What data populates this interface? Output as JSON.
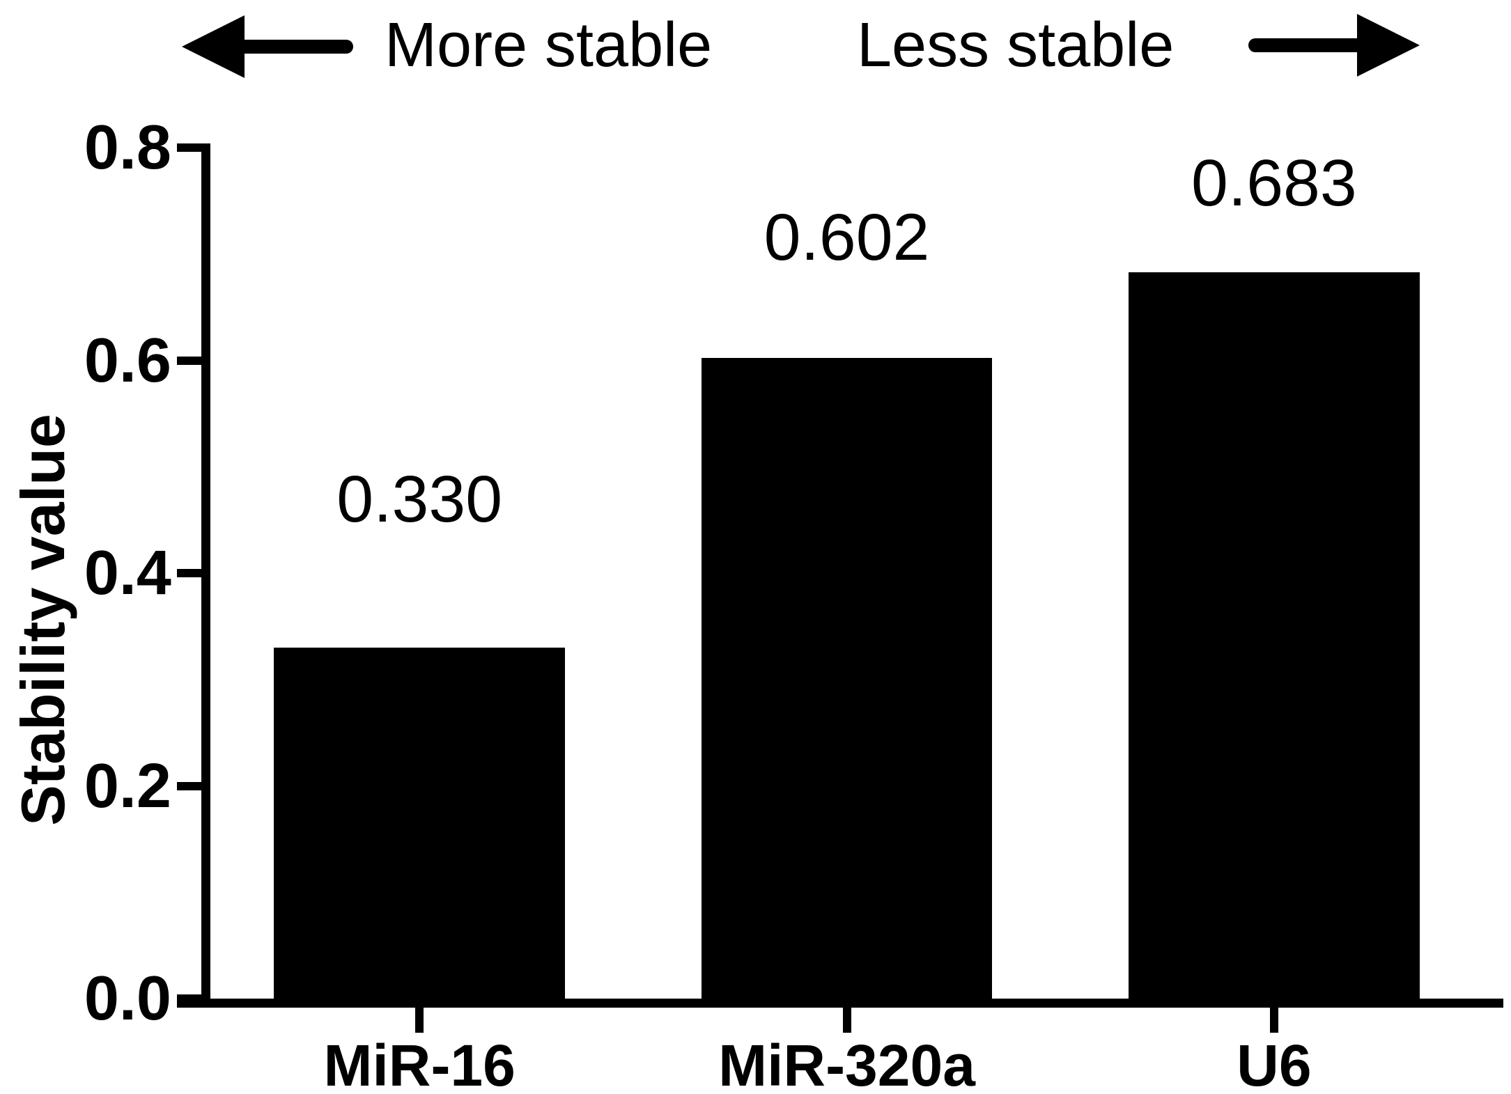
{
  "figure": {
    "background": "#ffffff",
    "foreground": "#000000"
  },
  "chart_data": {
    "type": "bar",
    "title": "",
    "categories": [
      "MiR-16",
      "MiR-320a",
      "U6"
    ],
    "values": [
      0.33,
      0.602,
      0.683
    ],
    "value_labels": [
      "0.330",
      "0.602",
      "0.683"
    ],
    "xlabel": "",
    "ylabel": "Stability value",
    "ylim": [
      0,
      0.8
    ],
    "yticks": [
      0,
      0.2,
      0.4,
      0.6,
      0.8
    ],
    "ytick_labels": [
      "0.0",
      "0.2",
      "0.4",
      "0.6",
      "0.8"
    ],
    "bar_color": "#000000",
    "grid": false,
    "legend": null,
    "annotation_left": "More stable",
    "annotation_right": "Less stable"
  }
}
